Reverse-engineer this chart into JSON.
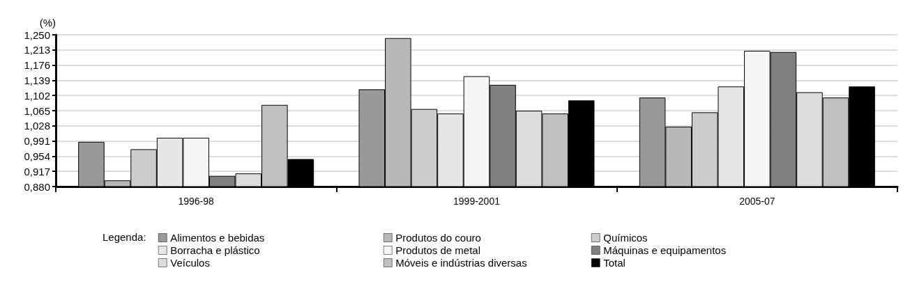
{
  "chart_data": {
    "type": "bar",
    "ylabel": "(%)",
    "legend_title": "Legenda:",
    "categories": [
      "1996-98",
      "1999-2001",
      "2005-07"
    ],
    "series": [
      {
        "name": "Alimentos e bebidas",
        "color": "#999999",
        "values": [
          0.989,
          1.117,
          1.097
        ]
      },
      {
        "name": "Produtos do couro",
        "color": "#b8b8b8",
        "values": [
          0.895,
          1.242,
          1.026
        ]
      },
      {
        "name": "Químicos",
        "color": "#cccccc",
        "values": [
          0.971,
          1.069,
          1.061
        ]
      },
      {
        "name": "Borracha e plástico",
        "color": "#e6e6e6",
        "values": [
          0.999,
          1.058,
          1.124
        ]
      },
      {
        "name": "Produtos de metal",
        "color": "#f5f5f5",
        "values": [
          0.999,
          1.149,
          1.211
        ]
      },
      {
        "name": "Máquinas e equipamentos",
        "color": "#808080",
        "values": [
          0.906,
          1.128,
          1.208
        ]
      },
      {
        "name": "Veículos",
        "color": "#dcdcdc",
        "values": [
          0.912,
          1.065,
          1.11
        ]
      },
      {
        "name": "Móveis e indústrias diversas",
        "color": "#c0c0c0",
        "values": [
          1.079,
          1.058,
          1.097
        ]
      },
      {
        "name": "Total",
        "color": "#000000",
        "values": [
          0.947,
          1.09,
          1.124
        ]
      }
    ],
    "ylim": [
      0.88,
      1.25
    ],
    "yticks": [
      {
        "value": 0.88,
        "label": "0,880"
      },
      {
        "value": 0.917,
        "label": "0,917"
      },
      {
        "value": 0.954,
        "label": "0,954"
      },
      {
        "value": 0.991,
        "label": "0,991"
      },
      {
        "value": 1.028,
        "label": "1,028"
      },
      {
        "value": 1.065,
        "label": "1,065"
      },
      {
        "value": 1.102,
        "label": "1,102"
      },
      {
        "value": 1.139,
        "label": "1,139"
      },
      {
        "value": 1.176,
        "label": "1,176"
      },
      {
        "value": 1.213,
        "label": "1,213"
      },
      {
        "value": 1.25,
        "label": "1,250"
      }
    ],
    "grid": "y",
    "legend": "bottom"
  }
}
